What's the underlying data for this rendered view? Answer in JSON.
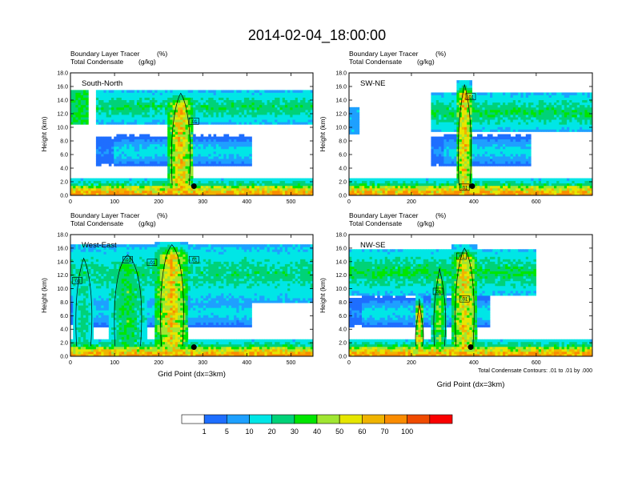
{
  "title": "2014-02-04_18:00:00",
  "chart_data": [
    {
      "type": "heatmap",
      "panel_label": "South-North",
      "subtitle_1": "Boundary Layer Tracer",
      "subtitle_1_units": "(%)",
      "subtitle_2": "Total Condensate",
      "subtitle_2_units": "(g/kg)",
      "ylabel": "Height (km)",
      "xlabel": "",
      "xlim": [
        0,
        550
      ],
      "ylim": [
        0,
        18
      ],
      "xticks": [
        0,
        100,
        200,
        300,
        400,
        500
      ],
      "yticks": [
        "0.0",
        "2.0",
        "4.0",
        "6.0",
        "8.0",
        "10.0",
        "12.0",
        "14.0",
        "16.0",
        "18.0"
      ],
      "contour_labels": [
        {
          "x": 280,
          "y": 10.9,
          "text": ".01"
        }
      ],
      "marker": {
        "x": 280,
        "y": 1.0
      },
      "convection_columns": [
        {
          "x": 250,
          "w": 60,
          "top": 15.5,
          "peak": 62
        }
      ],
      "upper_layer": {
        "base": 10.5,
        "top": 15.5,
        "x0": 60,
        "x1": 550,
        "strength": 28
      },
      "left_cloud": {
        "x1": 40,
        "base": 10.5,
        "top": 15.5,
        "strength": 30
      }
    },
    {
      "type": "heatmap",
      "panel_label": "SW-NE",
      "subtitle_1": "Boundary Layer Tracer",
      "subtitle_1_units": "(%)",
      "subtitle_2": "Total Condensate",
      "subtitle_2_units": "(g/kg)",
      "ylabel": "Height (km)",
      "xlabel": "",
      "xlim": [
        0,
        780
      ],
      "ylim": [
        0,
        18
      ],
      "xticks": [
        0,
        200,
        400,
        600
      ],
      "yticks": [
        "0.0",
        "2.0",
        "4.0",
        "6.0",
        "8.0",
        "10.0",
        "12.0",
        "14.0",
        "16.0",
        "18.0"
      ],
      "contour_labels": [
        {
          "x": 390,
          "y": 14.5,
          "text": ".01"
        },
        {
          "x": 370,
          "y": 1.2,
          "text": ".01"
        }
      ],
      "marker": {
        "x": 395,
        "y": 1.0
      },
      "convection_columns": [
        {
          "x": 370,
          "w": 55,
          "top": 16.8,
          "peak": 65
        }
      ],
      "upper_layer": {
        "base": 9.5,
        "top": 15.0,
        "x0": 260,
        "x1": 780,
        "strength": 30
      },
      "left_cloud": {
        "x1": 30,
        "base": 9.0,
        "top": 13.0,
        "strength": 8
      }
    },
    {
      "type": "heatmap",
      "panel_label": "West-East",
      "subtitle_1": "Boundary Layer Tracer",
      "subtitle_1_units": "(%)",
      "subtitle_2": "Total Condensate",
      "subtitle_2_units": "(g/kg)",
      "ylabel": "Height (km)",
      "xlabel": "Grid Point (dx=3km)",
      "xlim": [
        0,
        550
      ],
      "ylim": [
        0,
        18
      ],
      "xticks": [
        0,
        100,
        200,
        300,
        400,
        500
      ],
      "yticks": [
        "0.0",
        "2.0",
        "4.0",
        "6.0",
        "8.0",
        "10.0",
        "12.0",
        "14.0",
        "16.0",
        "18.0"
      ],
      "contour_labels": [
        {
          "x": 15,
          "y": 11.2,
          "text": ".01"
        },
        {
          "x": 130,
          "y": 14.3,
          "text": ".01"
        },
        {
          "x": 185,
          "y": 13.9,
          "text": ".01"
        },
        {
          "x": 280,
          "y": 14.3,
          "text": ".01"
        }
      ],
      "marker": {
        "x": 280,
        "y": 1.0
      },
      "convection_columns": [
        {
          "x": 230,
          "w": 75,
          "top": 17.0,
          "peak": 62
        },
        {
          "x": 130,
          "w": 90,
          "top": 15.5,
          "peak": 32
        },
        {
          "x": 30,
          "w": 50,
          "top": 15.0,
          "peak": 25
        }
      ],
      "upper_layer": {
        "base": 8.0,
        "top": 16.5,
        "x0": 0,
        "x1": 550,
        "strength": 26
      },
      "left_cloud": {
        "x1": 0,
        "base": 0,
        "top": 0,
        "strength": 0
      }
    },
    {
      "type": "heatmap",
      "panel_label": "NW-SE",
      "subtitle_1": "Boundary Layer Tracer",
      "subtitle_1_units": "(%)",
      "subtitle_2": "Total Condensate",
      "subtitle_2_units": "(g/kg)",
      "ylabel": "Height (km)",
      "xlabel": "Grid Point (dx=3km)",
      "xlim": [
        0,
        780
      ],
      "ylim": [
        0,
        18
      ],
      "xticks": [
        0,
        200,
        400,
        600
      ],
      "yticks": [
        "0.0",
        "2.0",
        "4.0",
        "6.0",
        "8.0",
        "10.0",
        "12.0",
        "14.0",
        "16.0",
        "18.0"
      ],
      "contour_labels": [
        {
          "x": 360,
          "y": 14.8,
          "text": ".01"
        },
        {
          "x": 285,
          "y": 9.6,
          "text": ".01"
        },
        {
          "x": 370,
          "y": 8.5,
          "text": ".01"
        }
      ],
      "marker": {
        "x": 390,
        "y": 1.0
      },
      "convection_columns": [
        {
          "x": 370,
          "w": 85,
          "top": 16.5,
          "peak": 60
        },
        {
          "x": 225,
          "w": 30,
          "top": 9.0,
          "peak": 62
        },
        {
          "x": 290,
          "w": 50,
          "top": 13.5,
          "peak": 40
        }
      ],
      "upper_layer": {
        "base": 9.0,
        "top": 16.0,
        "x0": 0,
        "x1": 600,
        "strength": 30
      },
      "left_cloud": {
        "x1": 0,
        "base": 0,
        "top": 0,
        "strength": 0
      }
    }
  ],
  "footnote": "Total Condensate Contours: .01 to .01 by .000",
  "colorbar": {
    "labels": [
      "1",
      "5",
      "10",
      "20",
      "30",
      "40",
      "50",
      "60",
      "70",
      "100"
    ],
    "colors": [
      "#ffffff",
      "#1e6eff",
      "#1ea0ff",
      "#00e6e6",
      "#00d278",
      "#00e600",
      "#a0e632",
      "#e6e600",
      "#f0b400",
      "#fa8c00",
      "#f04b00",
      "#fa0000"
    ]
  }
}
